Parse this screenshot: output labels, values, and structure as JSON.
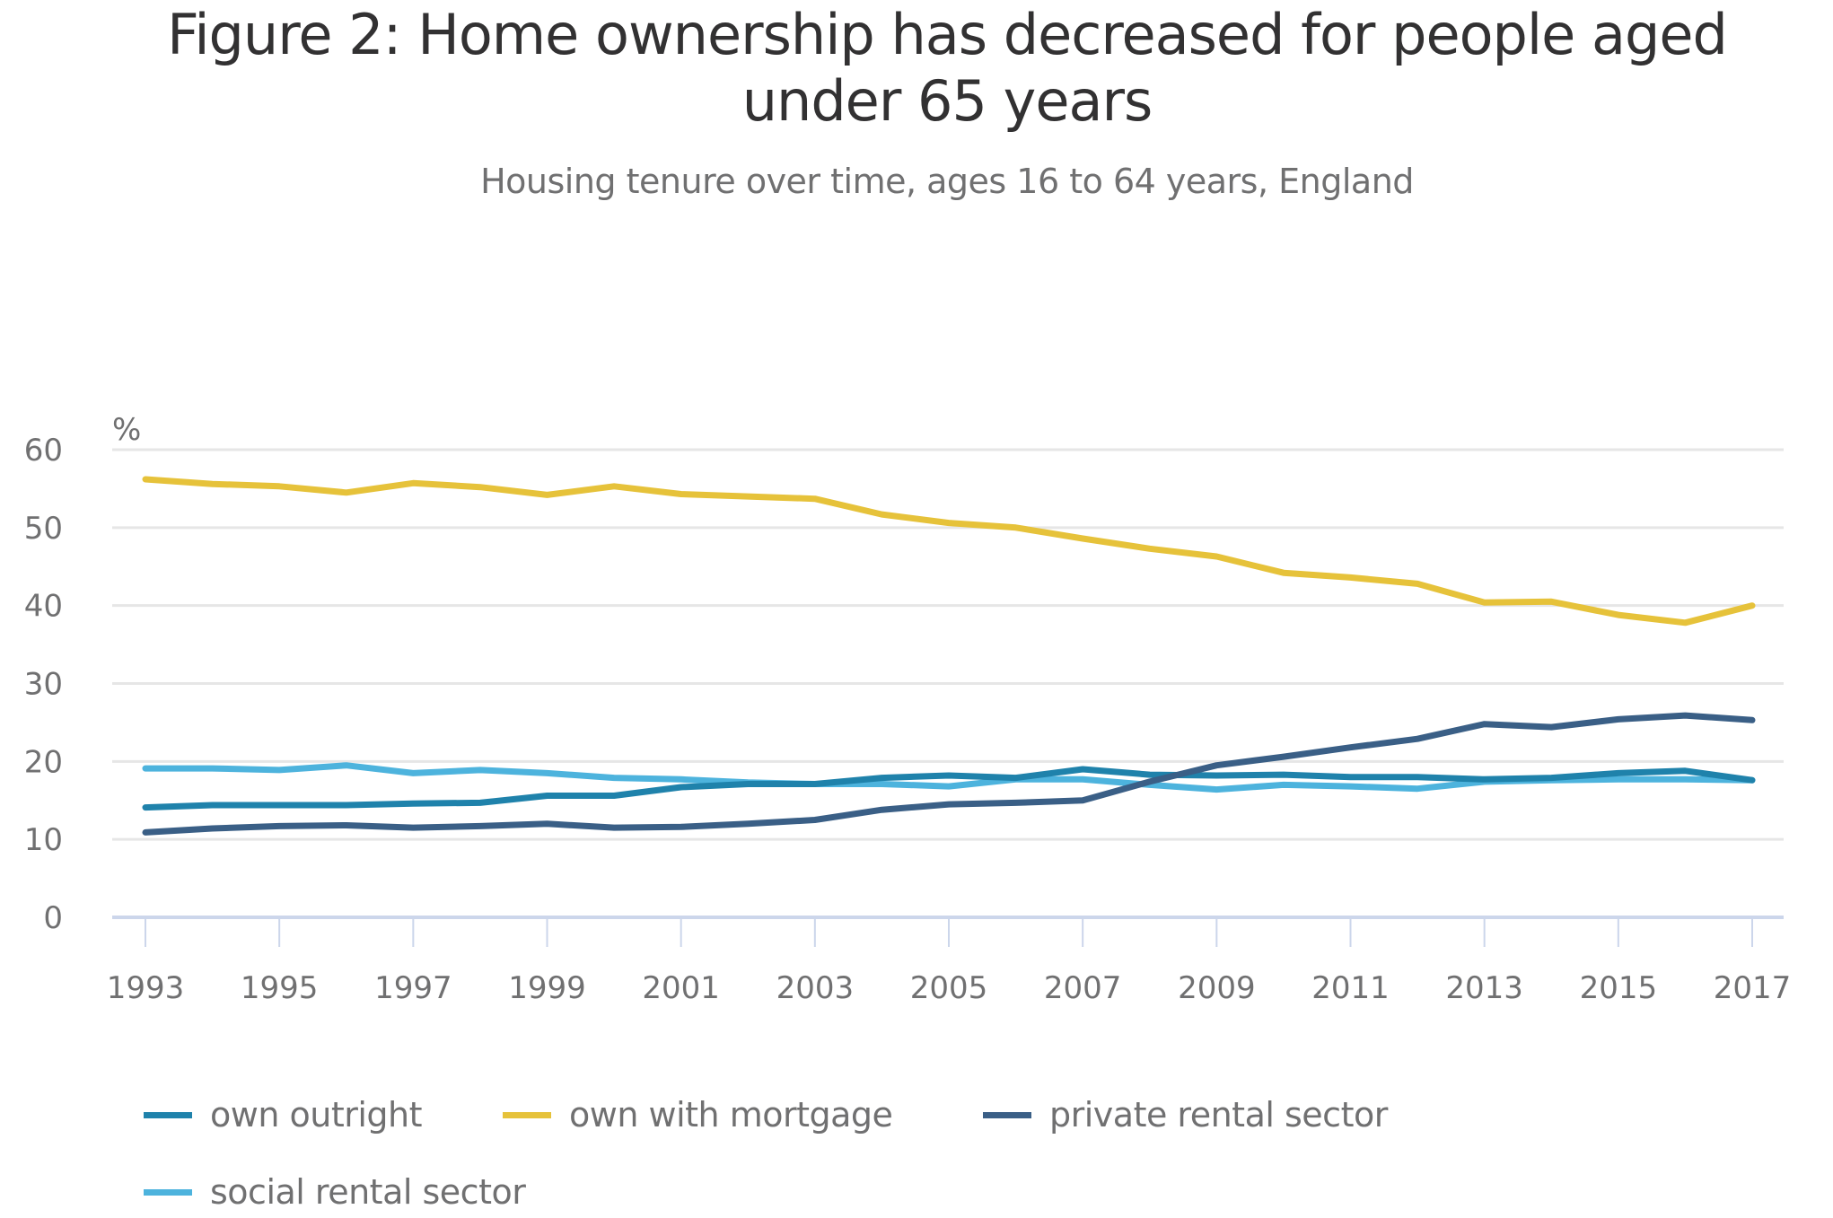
{
  "header": {
    "title_line1": "Figure 2: Home ownership has decreased for people aged",
    "title_line2": "under 65 years",
    "subtitle": "Housing tenure over time, ages 16 to 64 years, England"
  },
  "chart_data": {
    "type": "line",
    "title": "Figure 2: Home ownership has decreased for people aged under 65 years",
    "subtitle": "Housing tenure over time, ages 16 to 64 years, England",
    "xlabel": "",
    "ylabel": "%",
    "ylim": [
      0,
      60
    ],
    "yticks": [
      0,
      10,
      20,
      30,
      40,
      50,
      60
    ],
    "grid": true,
    "legend_position": "bottom",
    "x": [
      1993,
      1994,
      1995,
      1996,
      1997,
      1998,
      1999,
      2000,
      2001,
      2002,
      2003,
      2004,
      2005,
      2006,
      2007,
      2008,
      2009,
      2010,
      2011,
      2012,
      2013,
      2014,
      2015,
      2016,
      2017
    ],
    "xtick_labels": [
      "1993",
      "1995",
      "1997",
      "1999",
      "2001",
      "2003",
      "2005",
      "2007",
      "2009",
      "2011",
      "2013",
      "2015",
      "2017"
    ],
    "series": [
      {
        "name": "own outright",
        "color": "#1f82ab",
        "values": [
          14.1,
          14.4,
          14.4,
          14.4,
          14.6,
          14.7,
          15.6,
          15.6,
          16.7,
          17.1,
          17.1,
          17.9,
          18.2,
          17.9,
          19.0,
          18.3,
          18.2,
          18.3,
          18.0,
          18.0,
          17.7,
          17.9,
          18.5,
          18.8,
          17.6
        ]
      },
      {
        "name": "own with mortgage",
        "color": "#e6c23a",
        "values": [
          56.2,
          55.6,
          55.3,
          54.5,
          55.7,
          55.2,
          54.2,
          55.3,
          54.3,
          54.0,
          53.7,
          51.7,
          50.6,
          50.0,
          48.6,
          47.3,
          46.3,
          44.2,
          43.6,
          42.8,
          40.4,
          40.5,
          38.8,
          37.8,
          40.0
        ]
      },
      {
        "name": "private rental sector",
        "color": "#3a5f86",
        "values": [
          10.9,
          11.4,
          11.7,
          11.8,
          11.5,
          11.7,
          12.0,
          11.5,
          11.6,
          12.0,
          12.5,
          13.8,
          14.5,
          14.7,
          15.0,
          17.4,
          19.5,
          20.6,
          21.8,
          22.9,
          24.8,
          24.4,
          25.4,
          25.9,
          25.3
        ]
      },
      {
        "name": "social rental sector",
        "color": "#4db3dd",
        "values": [
          19.1,
          19.1,
          18.9,
          19.5,
          18.5,
          18.9,
          18.5,
          17.9,
          17.7,
          17.3,
          17.1,
          17.1,
          16.8,
          17.7,
          17.7,
          17.0,
          16.4,
          17.0,
          16.8,
          16.5,
          17.4,
          17.6,
          17.7,
          17.7,
          17.6
        ]
      }
    ]
  }
}
